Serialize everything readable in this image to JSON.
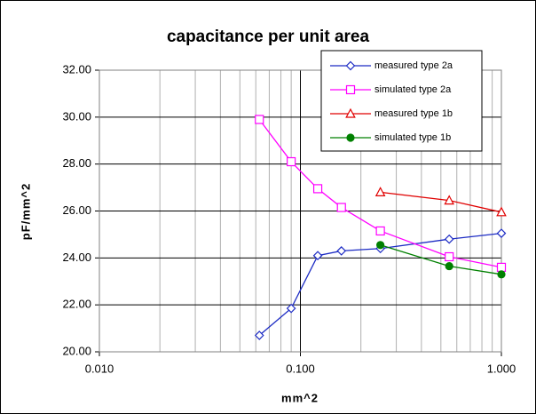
{
  "chart_data": {
    "type": "line",
    "title": "capacitance per unit area",
    "x_label": "mm^2",
    "y_label": "pF/mm^2",
    "xscale": "log",
    "xlim": [
      0.01,
      1
    ],
    "xticks": [
      {
        "value": 0.01,
        "label": "0.010"
      },
      {
        "value": 0.1,
        "label": "0.100"
      },
      {
        "value": 1,
        "label": "1.000"
      }
    ],
    "ylim": [
      20,
      32
    ],
    "yticks": [
      {
        "value": 20,
        "label": "20.00"
      },
      {
        "value": 22,
        "label": "22.00"
      },
      {
        "value": 24,
        "label": "24.00"
      },
      {
        "value": 26,
        "label": "26.00"
      },
      {
        "value": 28,
        "label": "28.00"
      },
      {
        "value": 30,
        "label": "30.00"
      },
      {
        "value": 32,
        "label": "32.00"
      }
    ],
    "grid": true,
    "minor_grid": true,
    "legend": "upper right",
    "series": [
      {
        "name": "measured type 2a",
        "color": "#1c2bc4",
        "marker": "diamond",
        "filled": false,
        "x": [
          0.0625,
          0.09,
          0.122,
          0.16,
          0.25,
          0.55,
          1.0
        ],
        "values": [
          20.7,
          21.85,
          24.1,
          24.3,
          24.4,
          24.8,
          25.05
        ]
      },
      {
        "name": "simulated type 2a",
        "color": "#ff00ff",
        "marker": "square",
        "filled": false,
        "x": [
          0.0625,
          0.09,
          0.122,
          0.16,
          0.25,
          0.55,
          1.0
        ],
        "values": [
          29.9,
          28.1,
          26.95,
          26.15,
          25.15,
          24.05,
          23.6
        ]
      },
      {
        "name": "measured type 1b",
        "color": "#e00000",
        "marker": "triangle",
        "filled": false,
        "x": [
          0.25,
          0.55,
          1.0
        ],
        "values": [
          26.8,
          26.45,
          25.95
        ]
      },
      {
        "name": "simulated type 1b",
        "color": "#008000",
        "marker": "circle",
        "filled": true,
        "x": [
          0.25,
          0.55,
          1.0
        ],
        "values": [
          24.55,
          23.65,
          23.3
        ]
      }
    ]
  }
}
